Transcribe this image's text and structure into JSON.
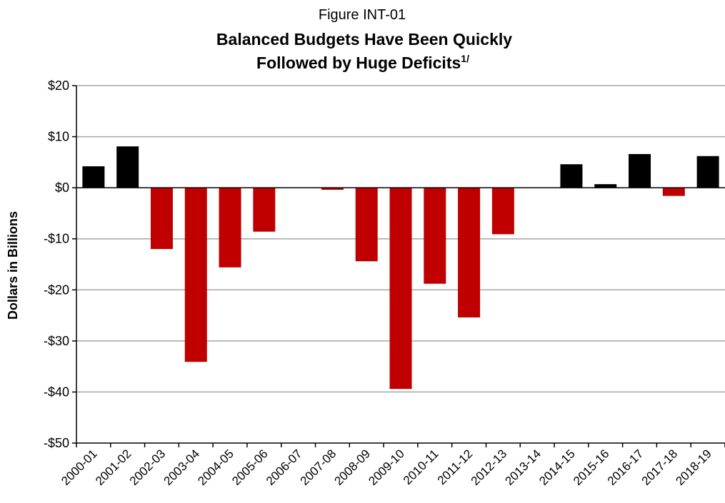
{
  "chart_data": {
    "type": "bar",
    "figure_label": "Figure INT-01",
    "title_line1": "Balanced Budgets Have Been Quickly",
    "title_line2": "Followed by Huge Deficits",
    "title_footnote": "1/",
    "xlabel": "",
    "ylabel": "Dollars in Billions",
    "ylim": [
      -50,
      20
    ],
    "ytick_values": [
      20,
      10,
      0,
      -10,
      -20,
      -30,
      -40,
      -50
    ],
    "ytick_labels": [
      "$20",
      "$10",
      "$0",
      "-$10",
      "-$20",
      "-$30",
      "-$40",
      "-$50"
    ],
    "grid": true,
    "legend": "none",
    "colors": {
      "surplus": "#000000",
      "deficit": "#c00000",
      "grid": "#a6a6a6",
      "axis": "#000000"
    },
    "categories": [
      "2000-01",
      "2001-02",
      "2002-03",
      "2003-04",
      "2004-05",
      "2005-06",
      "2006-07",
      "2007-08",
      "2008-09",
      "2009-10",
      "2010-11",
      "2011-12",
      "2012-13",
      "2013-14",
      "2014-15",
      "2015-16",
      "2016-17",
      "2017-18",
      "2018-19"
    ],
    "values": [
      4.2,
      8.1,
      -12.0,
      -34.1,
      -15.6,
      -8.6,
      0,
      -0.4,
      -14.4,
      -39.4,
      -18.8,
      -25.4,
      -9.1,
      0,
      4.6,
      0.7,
      6.6,
      -1.6,
      6.2
    ]
  }
}
